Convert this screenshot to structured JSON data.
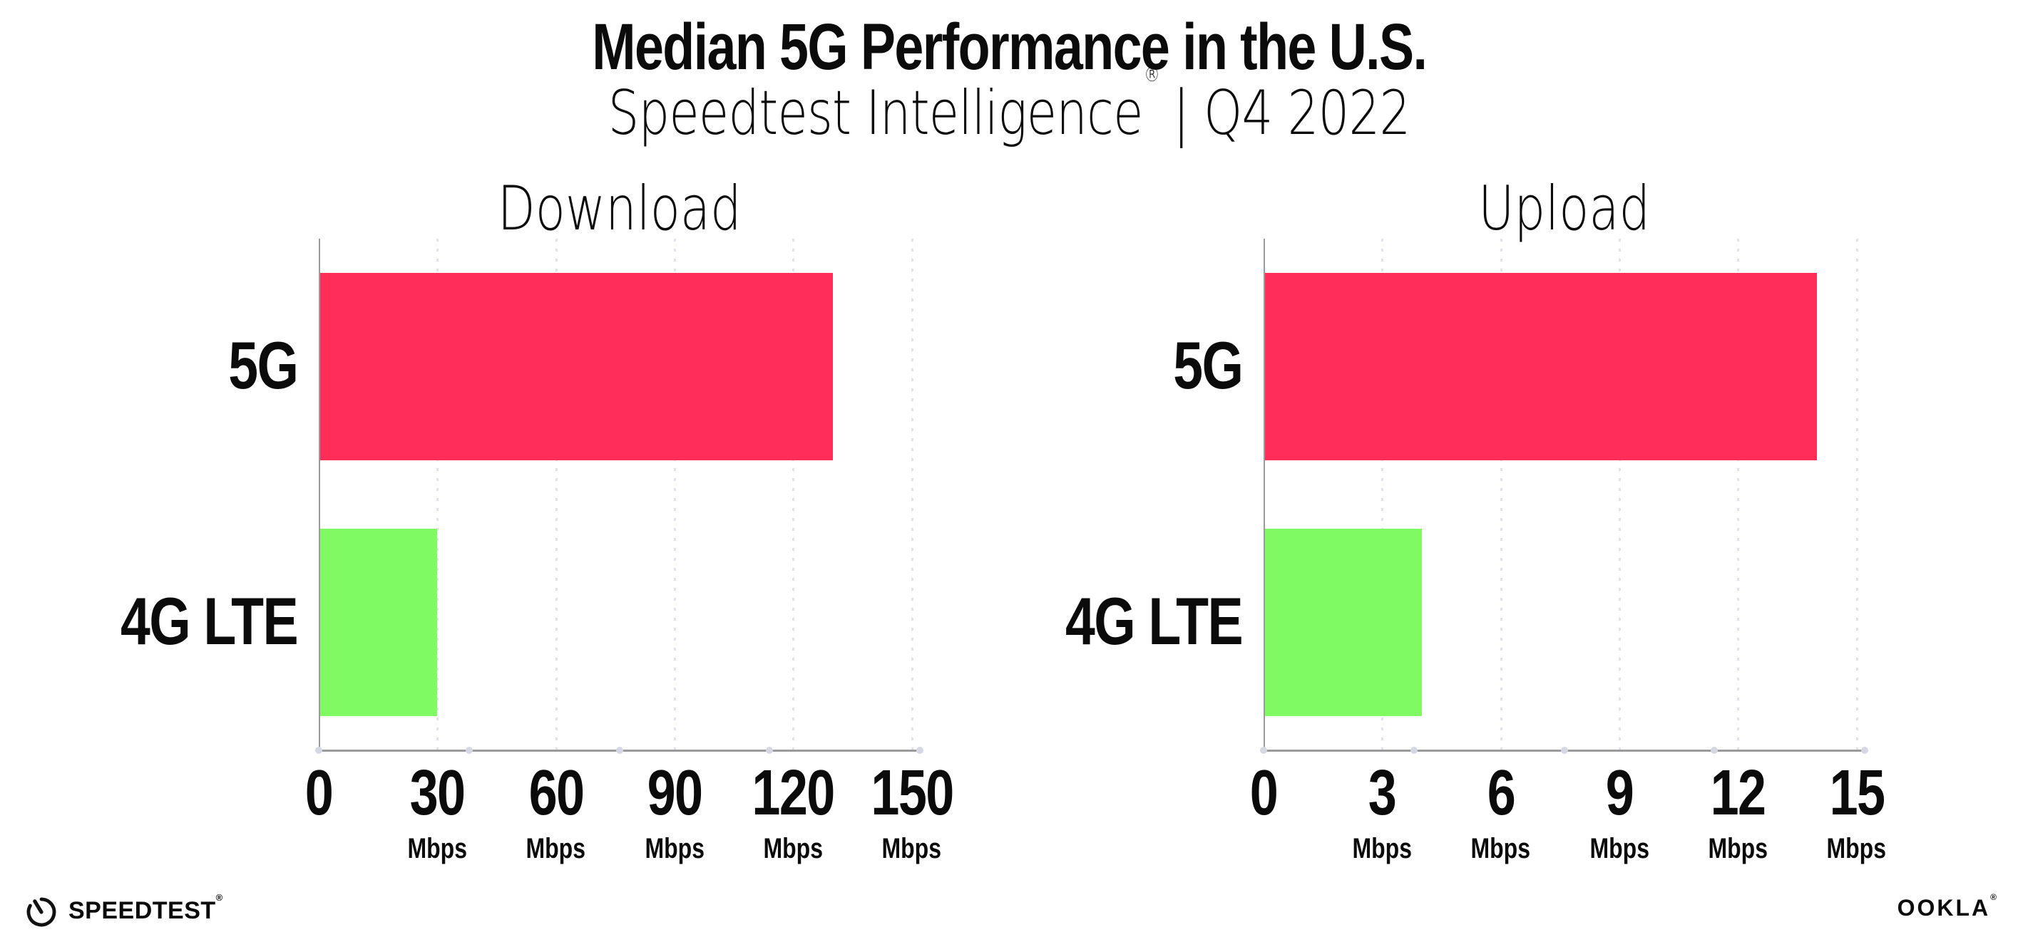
{
  "header": {
    "title": "Median 5G Performance in the U.S.",
    "subtitle": {
      "brand": "Speedtest Intelligence",
      "registered_mark": "®",
      "separator": "|",
      "period": "Q4 2022"
    }
  },
  "chart_data": [
    {
      "type": "bar",
      "orientation": "horizontal",
      "title": "Download",
      "categories": [
        "5G",
        "4G LTE"
      ],
      "values": [
        130,
        30
      ],
      "unit": "Mbps",
      "xticks": [
        0,
        30,
        60,
        90,
        120,
        150
      ],
      "xlim": [
        0,
        151.5
      ],
      "bar_colors": [
        "#FF2D57",
        "#80FA63"
      ],
      "grid": "vertical-dotted",
      "value_labels_shown": false
    },
    {
      "type": "bar",
      "orientation": "horizontal",
      "title": "Upload",
      "categories": [
        "5G",
        "4G LTE"
      ],
      "values": [
        14,
        4
      ],
      "unit": "Mbps",
      "xticks": [
        0,
        3,
        6,
        9,
        12,
        15
      ],
      "xlim": [
        0,
        15.15
      ],
      "bar_colors": [
        "#FF2D57",
        "#80FA63"
      ],
      "grid": "vertical-dotted",
      "value_labels_shown": false
    }
  ],
  "footer": {
    "speedtest_logo": {
      "text": "SPEEDTEST",
      "mark": "®"
    },
    "ookla_logo": {
      "text": "OOKLA",
      "mark": "®"
    }
  },
  "colors": {
    "bar_5g": "#FF2D57",
    "bar_4g_lte": "#80FA63",
    "axis": "#9B9B9B",
    "gridline": "#E2E2EC",
    "tick_dot": "#D7D7E4",
    "text": "#0B0B0B",
    "background": "#FFFFFF"
  }
}
